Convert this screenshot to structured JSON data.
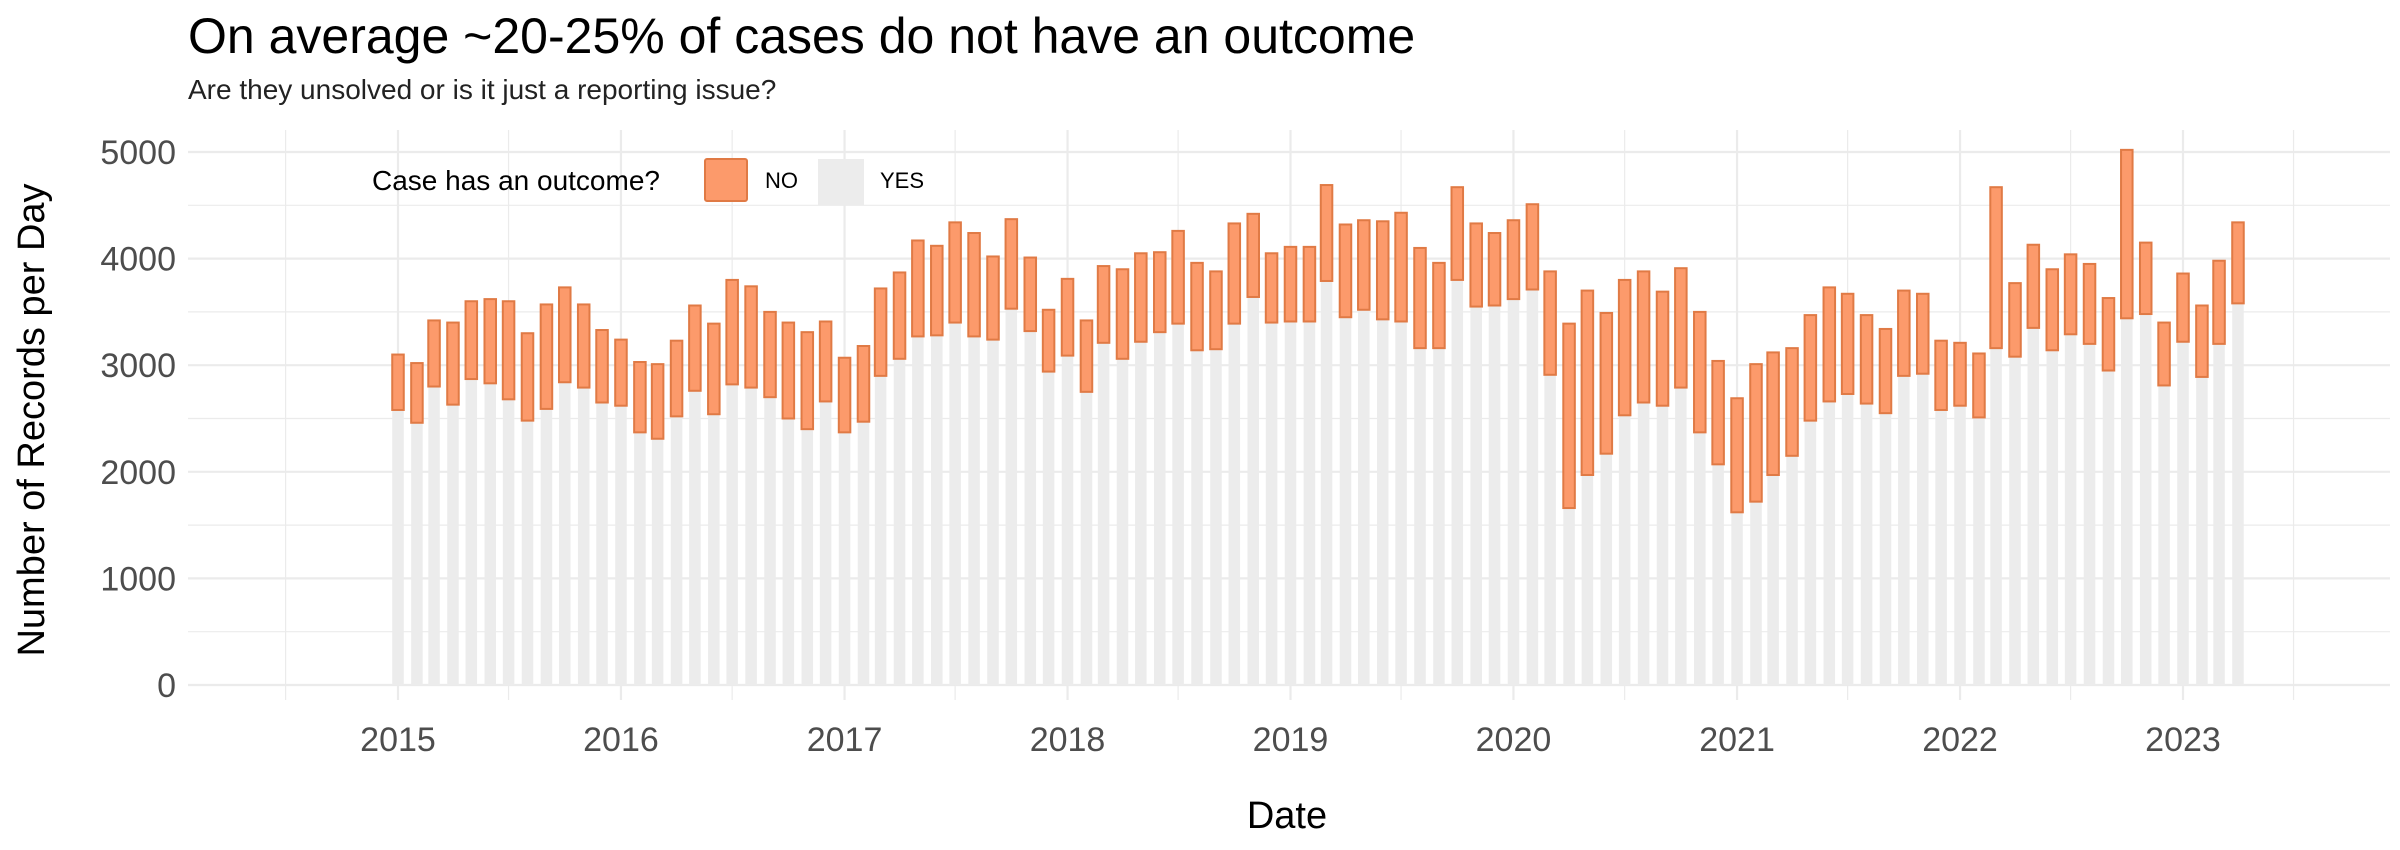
{
  "chart_data": {
    "type": "bar",
    "stacked": true,
    "title": "On average ~20-25% of cases do not have an outcome",
    "subtitle": "Are they unsolved or is it just a reporting issue?",
    "xlabel": "Date",
    "ylabel": "Number of Records per Day",
    "ylim": [
      0,
      5000
    ],
    "y_ticks": [
      0,
      1000,
      2000,
      3000,
      4000,
      5000
    ],
    "x_ticks": [
      "2015",
      "2016",
      "2017",
      "2018",
      "2019",
      "2020",
      "2021",
      "2022",
      "2023"
    ],
    "x_range": [
      "2014-01-01",
      "2023-12-01"
    ],
    "grid": true,
    "legend": {
      "title": "Case has an outcome?",
      "placement": "top-left",
      "entries": [
        "NO",
        "YES"
      ]
    },
    "colors": {
      "NO": "#fc9a6b",
      "NO_border": "#e07a45",
      "YES": "#ececec",
      "grid": "#ebebeb"
    },
    "x": [
      "2015-01",
      "2015-02",
      "2015-03",
      "2015-04",
      "2015-05",
      "2015-06",
      "2015-07",
      "2015-08",
      "2015-09",
      "2015-10",
      "2015-11",
      "2015-12",
      "2016-01",
      "2016-02",
      "2016-03",
      "2016-04",
      "2016-05",
      "2016-06",
      "2016-07",
      "2016-08",
      "2016-09",
      "2016-10",
      "2016-11",
      "2016-12",
      "2017-01",
      "2017-02",
      "2017-03",
      "2017-04",
      "2017-05",
      "2017-06",
      "2017-07",
      "2017-08",
      "2017-09",
      "2017-10",
      "2017-11",
      "2017-12",
      "2018-01",
      "2018-02",
      "2018-03",
      "2018-04",
      "2018-05",
      "2018-06",
      "2018-07",
      "2018-08",
      "2018-09",
      "2018-10",
      "2018-11",
      "2018-12",
      "2019-01",
      "2019-02",
      "2019-03",
      "2019-04",
      "2019-05",
      "2019-06",
      "2019-07",
      "2019-08",
      "2019-09",
      "2019-10",
      "2019-11",
      "2019-12",
      "2020-01",
      "2020-02",
      "2020-03",
      "2020-04",
      "2020-05",
      "2020-06",
      "2020-07",
      "2020-08",
      "2020-09",
      "2020-10",
      "2020-11",
      "2020-12",
      "2021-01",
      "2021-02",
      "2021-03",
      "2021-04",
      "2021-05",
      "2021-06",
      "2021-07",
      "2021-08",
      "2021-09",
      "2021-10",
      "2021-11",
      "2021-12",
      "2022-01",
      "2022-02",
      "2022-03",
      "2022-04",
      "2022-05",
      "2022-06",
      "2022-07",
      "2022-08",
      "2022-09",
      "2022-10",
      "2022-11",
      "2022-12",
      "2023-01",
      "2023-02",
      "2023-03",
      "2023-04"
    ],
    "series": [
      {
        "name": "YES",
        "values": [
          2580,
          2460,
          2800,
          2630,
          2870,
          2830,
          2680,
          2480,
          2590,
          2840,
          2790,
          2650,
          2620,
          2370,
          2310,
          2520,
          2760,
          2540,
          2820,
          2790,
          2700,
          2500,
          2400,
          2660,
          2370,
          2470,
          2900,
          3060,
          3270,
          3280,
          3400,
          3270,
          3240,
          3530,
          3320,
          2940,
          3090,
          2750,
          3210,
          3060,
          3220,
          3310,
          3390,
          3140,
          3150,
          3390,
          3640,
          3400,
          3410,
          3410,
          3790,
          3450,
          3520,
          3430,
          3410,
          3160,
          3160,
          3800,
          3550,
          3560,
          3620,
          3710,
          2910,
          1660,
          1970,
          2170,
          2530,
          2650,
          2620,
          2790,
          2370,
          2070,
          1620,
          1720,
          1970,
          2150,
          2480,
          2660,
          2730,
          2640,
          2550,
          2900,
          2920,
          2580,
          2620,
          2510,
          3160,
          3080,
          3350,
          3140,
          3290,
          3200,
          2950,
          3440,
          3480,
          2810,
          3220,
          2890,
          3200,
          3580
        ]
      },
      {
        "name": "NO",
        "values": [
          520,
          560,
          620,
          770,
          730,
          790,
          920,
          820,
          980,
          890,
          780,
          680,
          620,
          660,
          700,
          710,
          800,
          850,
          980,
          950,
          800,
          900,
          910,
          750,
          700,
          710,
          820,
          810,
          900,
          840,
          940,
          970,
          780,
          840,
          690,
          580,
          720,
          670,
          720,
          840,
          830,
          750,
          870,
          820,
          730,
          940,
          780,
          650,
          700,
          700,
          900,
          870,
          840,
          920,
          1020,
          940,
          800,
          870,
          780,
          680,
          740,
          800,
          970,
          1730,
          1730,
          1320,
          1270,
          1230,
          1070,
          1120,
          1130,
          970,
          1070,
          1290,
          1150,
          1010,
          990,
          1070,
          940,
          830,
          790,
          800,
          750,
          650,
          590,
          600,
          1510,
          690,
          780,
          760,
          750,
          750,
          680,
          1580,
          670,
          590,
          640,
          670,
          780,
          760
        ]
      }
    ]
  }
}
